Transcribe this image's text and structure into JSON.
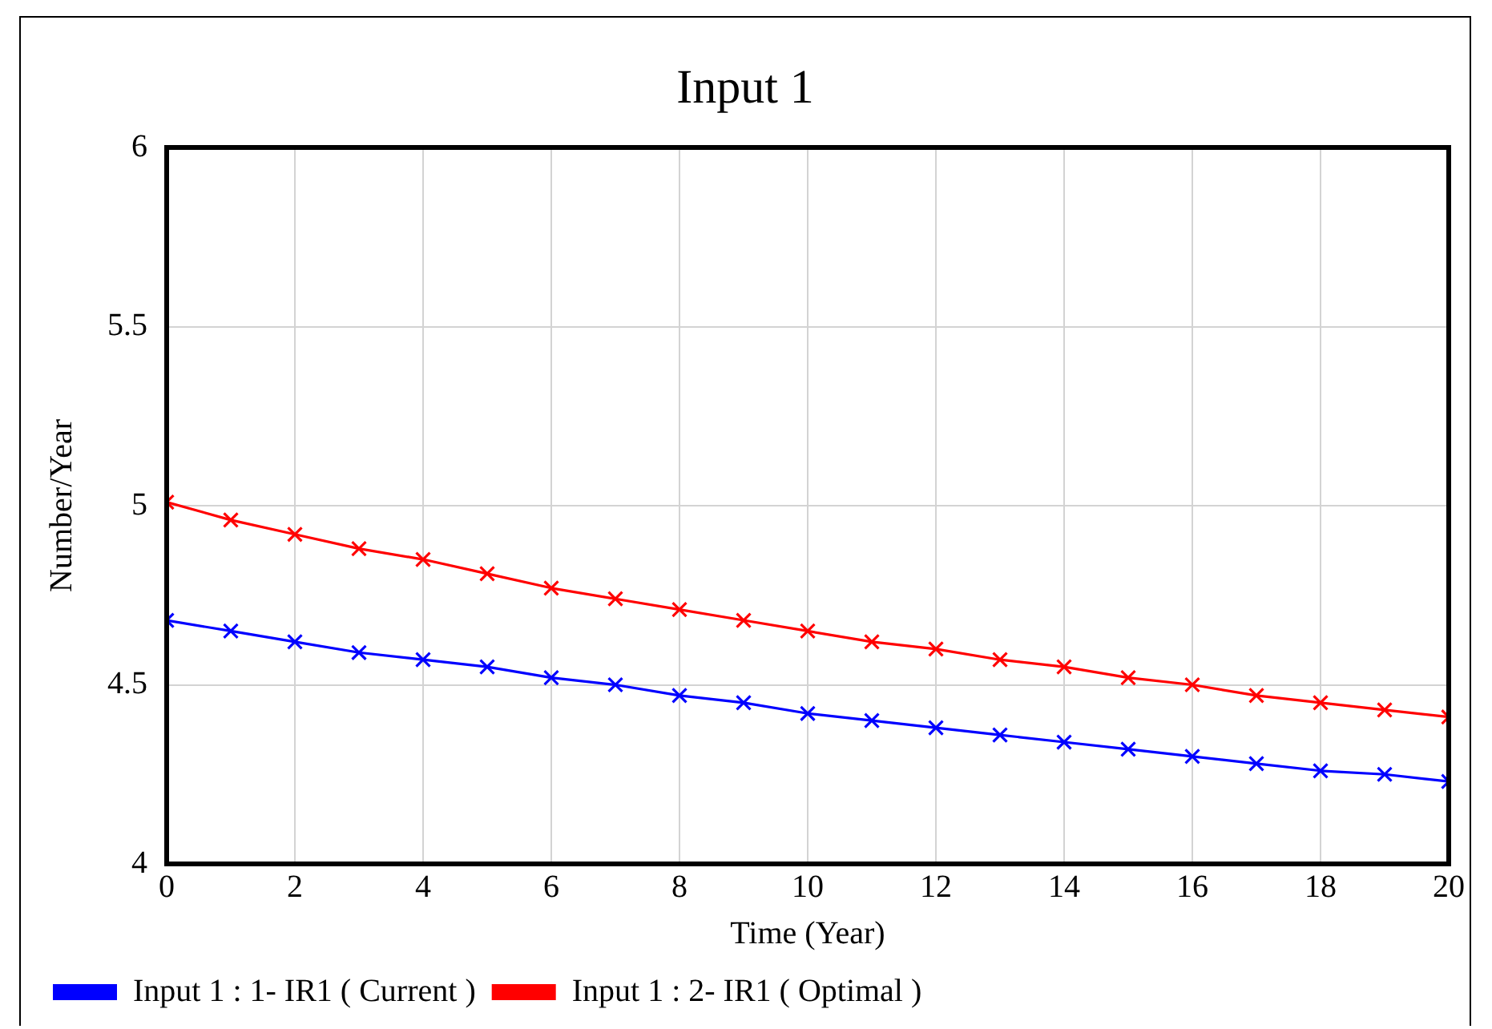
{
  "chart_data": {
    "type": "line",
    "title": "Input 1",
    "xlabel": "Time (Year)",
    "ylabel": "Number/Year",
    "x": [
      0,
      1,
      2,
      3,
      4,
      5,
      6,
      7,
      8,
      9,
      10,
      11,
      12,
      13,
      14,
      15,
      16,
      17,
      18,
      19,
      20
    ],
    "xlim": [
      0,
      20
    ],
    "xticks": [
      0,
      2,
      4,
      6,
      8,
      10,
      12,
      14,
      16,
      18,
      20
    ],
    "ylim": [
      4,
      6
    ],
    "yticks": [
      4,
      4.5,
      5,
      5.5,
      6
    ],
    "grid": true,
    "legend": "bottom",
    "marker": "cross",
    "line_style": "solid",
    "series": [
      {
        "name": "Input 1 : 1- IR1 ( Current )",
        "color": "#0000ff",
        "values": [
          4.68,
          4.65,
          4.62,
          4.59,
          4.57,
          4.55,
          4.52,
          4.5,
          4.47,
          4.45,
          4.42,
          4.4,
          4.38,
          4.36,
          4.34,
          4.32,
          4.3,
          4.28,
          4.26,
          4.25,
          4.23
        ]
      },
      {
        "name": "Input 1 : 2- IR1 ( Optimal )",
        "color": "#ff0000",
        "values": [
          5.01,
          4.96,
          4.92,
          4.88,
          4.85,
          4.81,
          4.77,
          4.74,
          4.71,
          4.68,
          4.65,
          4.62,
          4.6,
          4.57,
          4.55,
          4.52,
          4.5,
          4.47,
          4.45,
          4.43,
          4.41
        ]
      }
    ]
  }
}
